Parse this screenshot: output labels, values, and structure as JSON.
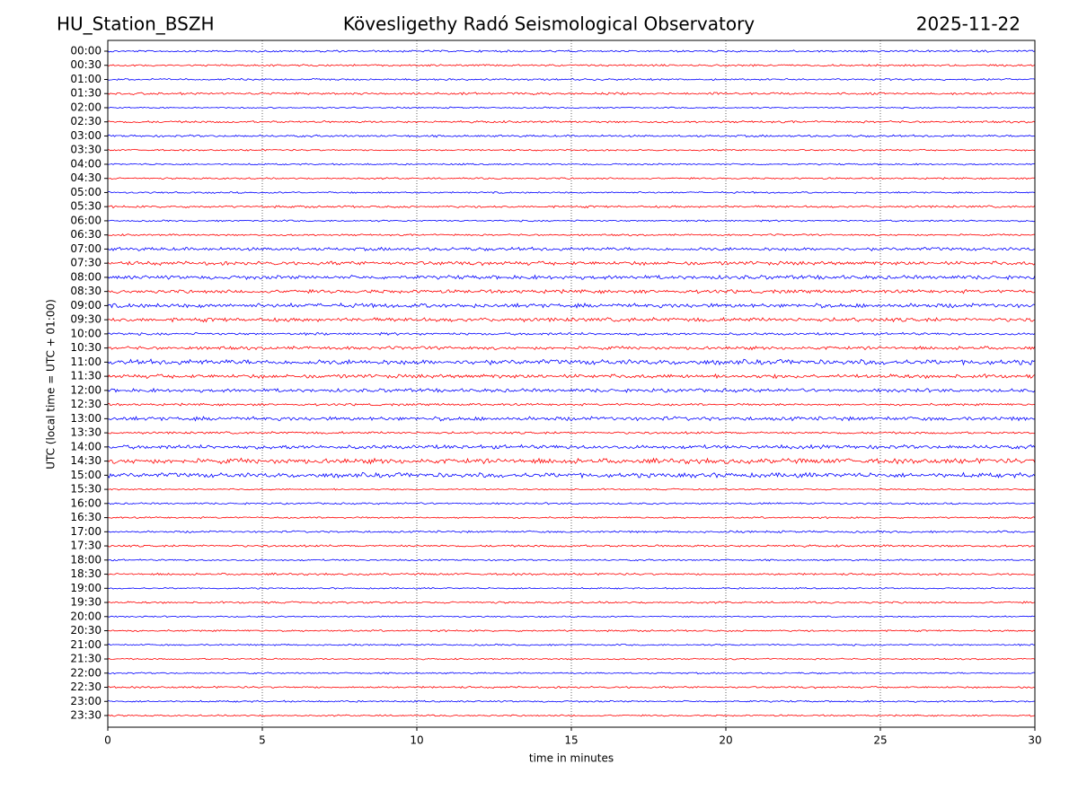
{
  "chart_data": {
    "type": "helicorder",
    "title_left": "HU_Station_BSZH",
    "title": "Kövesligethy Radó Seismological Observatory",
    "title_right": "2025-11-22",
    "ylabel": "UTC (local time = UTC + 01:00)",
    "xlabel": "time in minutes",
    "categories": [
      "00:00",
      "00:30",
      "01:00",
      "01:30",
      "02:00",
      "02:30",
      "03:00",
      "03:30",
      "04:00",
      "04:30",
      "05:00",
      "05:30",
      "06:00",
      "06:30",
      "07:00",
      "07:30",
      "08:00",
      "08:30",
      "09:00",
      "09:30",
      "10:00",
      "10:30",
      "11:00",
      "11:30",
      "12:00",
      "12:30",
      "13:00",
      "13:30",
      "14:00",
      "14:30",
      "15:00",
      "15:30",
      "16:00",
      "16:30",
      "17:00",
      "17:30",
      "18:00",
      "18:30",
      "19:00",
      "19:30",
      "20:00",
      "20:30",
      "21:00",
      "21:30",
      "22:00",
      "22:30",
      "23:00",
      "23:30"
    ],
    "colors": [
      "#0000ff",
      "#ff0000"
    ],
    "xlim": [
      0,
      30
    ],
    "xticks": [
      0,
      5,
      10,
      15,
      20,
      25,
      30
    ],
    "grid": true
  }
}
